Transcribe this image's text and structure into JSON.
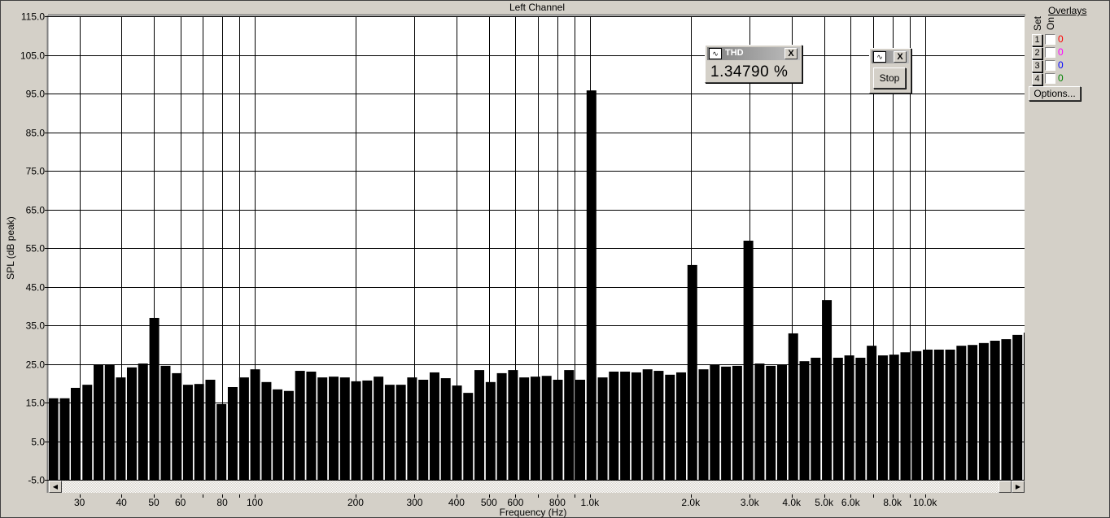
{
  "window": {
    "title": "Left Channel"
  },
  "thd_panel": {
    "title": "THD",
    "value": "1.34790 %",
    "close_label": "X",
    "icon": "waveform-icon"
  },
  "stop_panel": {
    "stop_label": "Stop",
    "close_label": "X",
    "icon": "waveform-icon"
  },
  "overlays": {
    "title": "Overlays",
    "set_label": "Set",
    "on_label": "On",
    "rows": [
      {
        "number": "1",
        "value": "0",
        "color": "#ff0000",
        "checked": false
      },
      {
        "number": "2",
        "value": "0",
        "color": "#ff00ff",
        "checked": false
      },
      {
        "number": "3",
        "value": "0",
        "color": "#0000ff",
        "checked": false
      },
      {
        "number": "4",
        "value": "0",
        "color": "#008000",
        "checked": false
      }
    ],
    "options_label": "Options..."
  },
  "chart_data": {
    "type": "bar",
    "title": "Left Channel",
    "xlabel": "Frequency (Hz)",
    "ylabel": "SPL (dB peak)",
    "x_scale": "log",
    "xlim": [
      24.3,
      19800
    ],
    "ylim": [
      -5,
      115
    ],
    "grid": true,
    "bar_color": "#000000",
    "y_ticks": [
      "115.0",
      "105.0",
      "95.0",
      "85.0",
      "75.0",
      "65.0",
      "55.0",
      "45.0",
      "35.0",
      "25.0",
      "15.0",
      "5.0",
      "-5.0"
    ],
    "x_ticks": [
      {
        "f": 30,
        "label": "30"
      },
      {
        "f": 40,
        "label": "40"
      },
      {
        "f": 50,
        "label": "50"
      },
      {
        "f": 60,
        "label": "60"
      },
      {
        "f": 80,
        "label": "80"
      },
      {
        "f": 100,
        "label": "100"
      },
      {
        "f": 200,
        "label": "200"
      },
      {
        "f": 300,
        "label": "300"
      },
      {
        "f": 400,
        "label": "400"
      },
      {
        "f": 500,
        "label": "500"
      },
      {
        "f": 600,
        "label": "600"
      },
      {
        "f": 800,
        "label": "800"
      },
      {
        "f": 1000,
        "label": "1.0k"
      },
      {
        "f": 2000,
        "label": "2.0k"
      },
      {
        "f": 3000,
        "label": "3.0k"
      },
      {
        "f": 4000,
        "label": "4.0k"
      },
      {
        "f": 5000,
        "label": "5.0k"
      },
      {
        "f": 6000,
        "label": "6.0k"
      },
      {
        "f": 8000,
        "label": "8.0k"
      },
      {
        "f": 10000,
        "label": "10.0k"
      }
    ],
    "x_grid": [
      30,
      40,
      50,
      60,
      70,
      80,
      90,
      100,
      200,
      300,
      400,
      500,
      600,
      700,
      800,
      900,
      1000,
      2000,
      3000,
      4000,
      5000,
      6000,
      7000,
      8000,
      9000,
      10000
    ],
    "x": [
      24.8,
      26.8,
      28.9,
      31.3,
      33.8,
      36.5,
      39.4,
      42.5,
      45.9,
      49.6,
      53.6,
      57.9,
      62.5,
      67.5,
      72.9,
      78.7,
      85.0,
      91.9,
      99.2,
      107.2,
      115.7,
      125,
      135,
      145.8,
      157.5,
      170.1,
      183.7,
      198.4,
      214.3,
      231.5,
      250,
      270,
      291.6,
      315,
      340.2,
      367.4,
      396.9,
      428.6,
      462.9,
      500,
      540,
      583.3,
      630,
      680.4,
      734.8,
      793.7,
      857.3,
      925.9,
      1000,
      1080,
      1166,
      1260,
      1361,
      1470,
      1587,
      1715,
      1852,
      2000,
      2160,
      2333,
      2520,
      2722,
      2939,
      3175,
      3429,
      3704,
      4000,
      4320,
      4666,
      5040,
      5443,
      5879,
      6350,
      6858,
      7408,
      8000,
      8641,
      9332,
      10079,
      10886,
      11758,
      12699,
      13716,
      14815,
      16000,
      17281,
      18665,
      20159
    ],
    "values": [
      16.1,
      16.1,
      18.8,
      19.6,
      24.8,
      24.8,
      21.5,
      24.1,
      25.1,
      36.9,
      24.5,
      22.6,
      19.6,
      19.8,
      20.9,
      14.6,
      19.0,
      21.5,
      23.6,
      20.3,
      18.4,
      18.0,
      23.2,
      23.0,
      21.5,
      21.7,
      21.5,
      20.5,
      20.7,
      21.7,
      19.6,
      19.6,
      21.5,
      20.9,
      22.8,
      21.3,
      19.4,
      17.5,
      23.4,
      20.3,
      22.6,
      23.4,
      21.5,
      21.7,
      21.9,
      20.9,
      23.4,
      20.9,
      95.8,
      21.5,
      23.0,
      23.0,
      22.8,
      23.6,
      23.2,
      22.2,
      22.8,
      50.6,
      23.6,
      24.7,
      24.3,
      24.5,
      56.9,
      25.1,
      24.5,
      24.7,
      32.9,
      25.7,
      26.6,
      41.5,
      26.6,
      27.2,
      26.6,
      29.7,
      27.2,
      27.4,
      28.0,
      28.3,
      28.7,
      28.7,
      28.7,
      29.7,
      29.9,
      30.4,
      31.0,
      31.4,
      32.5,
      33.1
    ]
  },
  "scrollbar": {
    "left_icon": "arrow-left-icon",
    "right_icon": "arrow-right-icon"
  }
}
